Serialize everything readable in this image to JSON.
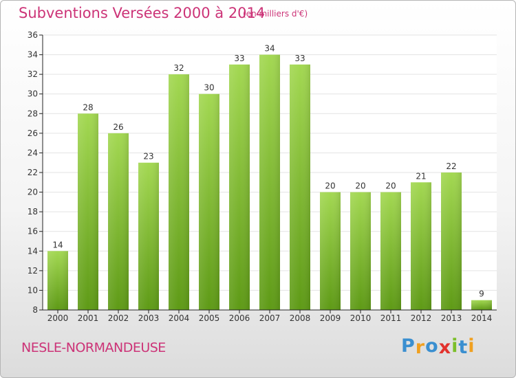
{
  "header": {
    "title": "Subventions Versées 2000 à 2014",
    "subtitle": "(en milliers d'€)"
  },
  "footer": {
    "location": "NESLE-NORMANDEUSE",
    "logo": {
      "letters": [
        "P",
        "r",
        "o",
        "x",
        "i",
        "t",
        "i"
      ],
      "colors": [
        "#3a8fd0",
        "#f0a020",
        "#3a8fd0",
        "#e2322d",
        "#7cbf2a",
        "#3a8fd0",
        "#f0a020"
      ]
    }
  },
  "chart_data": {
    "type": "bar",
    "categories": [
      "2000",
      "2001",
      "2002",
      "2003",
      "2004",
      "2005",
      "2006",
      "2007",
      "2008",
      "2009",
      "2010",
      "2011",
      "2012",
      "2013",
      "2014"
    ],
    "values": [
      14,
      28,
      26,
      23,
      32,
      30,
      33,
      34,
      33,
      20,
      20,
      20,
      21,
      22,
      9
    ],
    "data_labels": [
      "14",
      "28",
      "26",
      "23",
      "32",
      "30",
      "33",
      "34",
      "33",
      "20",
      "20",
      "20",
      "21",
      "22",
      "9"
    ],
    "title": "Subventions Versées 2000 à 2014",
    "subtitle": "(en milliers d'€)",
    "ylim": [
      8,
      36
    ],
    "yticks": [
      8,
      10,
      12,
      14,
      16,
      18,
      20,
      22,
      24,
      26,
      28,
      30,
      32,
      34,
      36
    ],
    "grid": true,
    "colors": {
      "bar_light": "#9fd44e",
      "bar_dark": "#5f9c17",
      "axis": "#222222",
      "grid": "#e3e3e3",
      "accent": "#cc3377"
    }
  }
}
